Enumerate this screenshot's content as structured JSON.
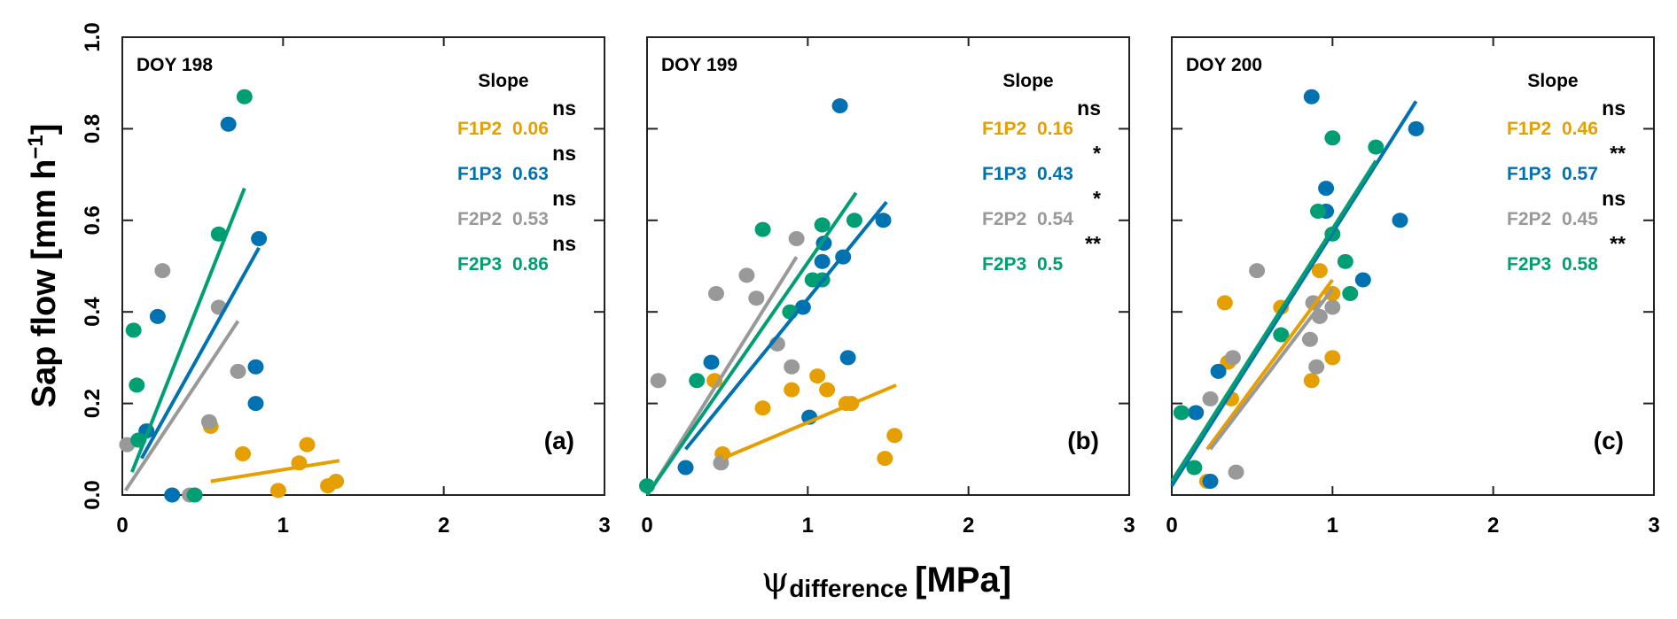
{
  "chart_data": {
    "type": "scatter",
    "ylabel": "Sap flow [mm h⁻¹]",
    "ylabel_main": "Sap flow [mm h",
    "ylabel_sup": "−1",
    "ylabel_end": "]",
    "xlabel_symbol": "ψ",
    "xlabel_sub": "difference",
    "xlabel_unit": "[MPa]",
    "xlim": [
      0,
      3
    ],
    "ylim": [
      0,
      1.0
    ],
    "xticks": [
      "0",
      "1",
      "2",
      "3"
    ],
    "yticks": [
      "0.0",
      "0.2",
      "0.4",
      "0.6",
      "0.8",
      "1.0"
    ],
    "grid": false,
    "legend_header": "Slope",
    "series_colors": {
      "F1P2": "#E69F00",
      "F1P3": "#0072B2",
      "F2P2": "#999999",
      "F2P3": "#009E73"
    },
    "panels": [
      {
        "title": "DOY 198",
        "letter": "(a)",
        "legend": [
          {
            "name": "F1P2",
            "slope": "0.06",
            "sig": "ns"
          },
          {
            "name": "F1P3",
            "slope": "0.63",
            "sig": "ns"
          },
          {
            "name": "F2P2",
            "slope": "0.53",
            "sig": "ns"
          },
          {
            "name": "F2P3",
            "slope": "0.86",
            "sig": "ns"
          }
        ],
        "series": [
          {
            "name": "F1P2",
            "points": [
              [
                0.55,
                0.15
              ],
              [
                0.75,
                0.09
              ],
              [
                1.15,
                0.11
              ],
              [
                1.1,
                0.07
              ],
              [
                0.97,
                0.01
              ],
              [
                1.28,
                0.02
              ],
              [
                1.33,
                0.03
              ]
            ],
            "fit": [
              [
                0.55,
                0.03
              ],
              [
                1.35,
                0.075
              ]
            ]
          },
          {
            "name": "F1P3",
            "points": [
              [
                0.66,
                0.81
              ],
              [
                0.85,
                0.56
              ],
              [
                0.22,
                0.39
              ],
              [
                0.83,
                0.28
              ],
              [
                0.83,
                0.2
              ],
              [
                0.15,
                0.14
              ],
              [
                0.31,
                0.0
              ]
            ],
            "fit": [
              [
                0.12,
                0.08
              ],
              [
                0.85,
                0.54
              ]
            ]
          },
          {
            "name": "F2P2",
            "points": [
              [
                0.25,
                0.49
              ],
              [
                0.6,
                0.41
              ],
              [
                0.72,
                0.27
              ],
              [
                0.54,
                0.16
              ],
              [
                0.03,
                0.11
              ],
              [
                0.42,
                0.0
              ]
            ],
            "fit": [
              [
                0.02,
                0.01
              ],
              [
                0.72,
                0.38
              ]
            ]
          },
          {
            "name": "F2P3",
            "points": [
              [
                0.76,
                0.87
              ],
              [
                0.6,
                0.57
              ],
              [
                0.07,
                0.36
              ],
              [
                0.09,
                0.24
              ],
              [
                0.1,
                0.12
              ],
              [
                0.45,
                0.0
              ]
            ],
            "fit": [
              [
                0.06,
                0.05
              ],
              [
                0.76,
                0.67
              ]
            ]
          }
        ]
      },
      {
        "title": "DOY 199",
        "letter": "(b)",
        "legend": [
          {
            "name": "F1P2",
            "slope": "0.16",
            "sig": "ns"
          },
          {
            "name": "F1P3",
            "slope": "0.43",
            "sig": "*"
          },
          {
            "name": "F2P2",
            "slope": "0.54",
            "sig": "*"
          },
          {
            "name": "F2P3",
            "slope": "0.5",
            "sig": "**"
          }
        ],
        "series": [
          {
            "name": "F1P2",
            "points": [
              [
                0.42,
                0.25
              ],
              [
                0.9,
                0.23
              ],
              [
                1.06,
                0.26
              ],
              [
                1.12,
                0.23
              ],
              [
                0.72,
                0.19
              ],
              [
                1.24,
                0.2
              ],
              [
                1.27,
                0.2
              ],
              [
                1.54,
                0.13
              ],
              [
                1.48,
                0.08
              ],
              [
                0.47,
                0.09
              ]
            ],
            "fit": [
              [
                0.47,
                0.08
              ],
              [
                1.55,
                0.24
              ]
            ]
          },
          {
            "name": "F1P3",
            "points": [
              [
                1.2,
                0.85
              ],
              [
                1.47,
                0.6
              ],
              [
                1.22,
                0.52
              ],
              [
                1.1,
                0.55
              ],
              [
                1.09,
                0.51
              ],
              [
                0.97,
                0.41
              ],
              [
                0.4,
                0.29
              ],
              [
                1.25,
                0.3
              ],
              [
                1.01,
                0.17
              ],
              [
                0.24,
                0.06
              ]
            ],
            "fit": [
              [
                0.24,
                0.1
              ],
              [
                1.49,
                0.64
              ]
            ]
          },
          {
            "name": "F2P2",
            "points": [
              [
                0.93,
                0.56
              ],
              [
                0.62,
                0.48
              ],
              [
                0.43,
                0.44
              ],
              [
                0.68,
                0.43
              ],
              [
                0.81,
                0.33
              ],
              [
                0.9,
                0.28
              ],
              [
                0.07,
                0.25
              ],
              [
                0.46,
                0.07
              ]
            ],
            "fit": [
              [
                0.02,
                0.01
              ],
              [
                0.93,
                0.52
              ]
            ]
          },
          {
            "name": "F2P3",
            "points": [
              [
                0.0,
                0.02
              ],
              [
                0.72,
                0.58
              ],
              [
                1.09,
                0.59
              ],
              [
                1.29,
                0.6
              ],
              [
                0.89,
                0.4
              ],
              [
                1.03,
                0.47
              ],
              [
                1.09,
                0.47
              ],
              [
                0.31,
                0.25
              ]
            ],
            "fit": [
              [
                0.0,
                0.0
              ],
              [
                1.3,
                0.66
              ]
            ]
          }
        ]
      },
      {
        "title": "DOY 200",
        "letter": "(c)",
        "legend": [
          {
            "name": "F1P2",
            "slope": "0.46",
            "sig": "ns"
          },
          {
            "name": "F1P3",
            "slope": "0.57",
            "sig": "**"
          },
          {
            "name": "F2P2",
            "slope": "0.45",
            "sig": "ns"
          },
          {
            "name": "F2P3",
            "slope": "0.58",
            "sig": "**"
          }
        ],
        "series": [
          {
            "name": "F1P2",
            "points": [
              [
                0.92,
                0.49
              ],
              [
                1.0,
                0.44
              ],
              [
                0.33,
                0.42
              ],
              [
                0.68,
                0.41
              ],
              [
                1.0,
                0.3
              ],
              [
                0.35,
                0.29
              ],
              [
                0.87,
                0.25
              ],
              [
                0.37,
                0.21
              ],
              [
                0.22,
                0.03
              ]
            ],
            "fit": [
              [
                0.22,
                0.1
              ],
              [
                1.0,
                0.47
              ]
            ]
          },
          {
            "name": "F1P3",
            "points": [
              [
                0.87,
                0.87
              ],
              [
                0.96,
                0.67
              ],
              [
                0.96,
                0.62
              ],
              [
                1.52,
                0.8
              ],
              [
                1.42,
                0.6
              ],
              [
                1.19,
                0.47
              ],
              [
                0.29,
                0.27
              ],
              [
                0.15,
                0.18
              ],
              [
                0.24,
                0.03
              ]
            ],
            "fit": [
              [
                0.0,
                0.02
              ],
              [
                1.52,
                0.86
              ]
            ]
          },
          {
            "name": "F2P3",
            "points": [
              [
                1.0,
                0.78
              ],
              [
                1.27,
                0.76
              ],
              [
                0.91,
                0.62
              ],
              [
                1.0,
                0.57
              ],
              [
                1.08,
                0.51
              ],
              [
                1.11,
                0.44
              ],
              [
                0.68,
                0.35
              ],
              [
                0.06,
                0.18
              ],
              [
                0.14,
                0.06
              ]
            ],
            "fit": [
              [
                0.0,
                0.03
              ],
              [
                1.27,
                0.73
              ]
            ]
          },
          {
            "name": "F2P2",
            "points": [
              [
                0.53,
                0.49
              ],
              [
                0.88,
                0.42
              ],
              [
                0.92,
                0.39
              ],
              [
                1.0,
                0.41
              ],
              [
                0.86,
                0.34
              ],
              [
                0.9,
                0.28
              ],
              [
                0.24,
                0.21
              ],
              [
                0.38,
                0.3
              ],
              [
                0.4,
                0.05
              ]
            ],
            "fit": [
              [
                0.24,
                0.1
              ],
              [
                1.0,
                0.45
              ]
            ]
          }
        ]
      }
    ]
  }
}
